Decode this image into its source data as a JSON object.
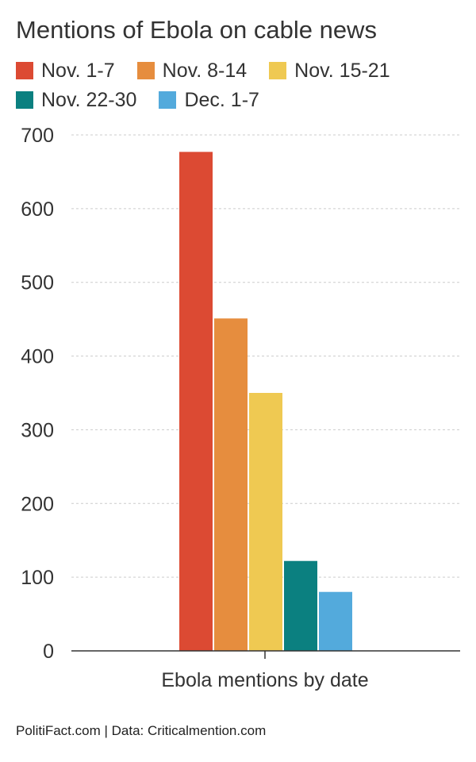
{
  "chart_data": {
    "type": "bar",
    "title": "Mentions of Ebola on cable news",
    "xlabel": "Ebola mentions by date",
    "ylabel": "",
    "categories": [
      "Ebola mentions by date"
    ],
    "ylim": [
      0,
      700
    ],
    "yticks": [
      "0",
      "100",
      "200",
      "300",
      "400",
      "500",
      "600",
      "700"
    ],
    "grid": true,
    "legend_position": "top",
    "series": [
      {
        "name": "Nov. 1-7",
        "values": [
          677
        ],
        "color": "#dc4a33"
      },
      {
        "name": "Nov. 8-14",
        "values": [
          451
        ],
        "color": "#e68d3e"
      },
      {
        "name": "Nov. 15-21",
        "values": [
          350
        ],
        "color": "#efc952"
      },
      {
        "name": "Nov. 22-30",
        "values": [
          122
        ],
        "color": "#0b8080"
      },
      {
        "name": "Dec. 1-7",
        "values": [
          80
        ],
        "color": "#53aadc"
      }
    ]
  },
  "footer": {
    "credit": "PolitiFact.com | Data: Criticalmention.com"
  }
}
